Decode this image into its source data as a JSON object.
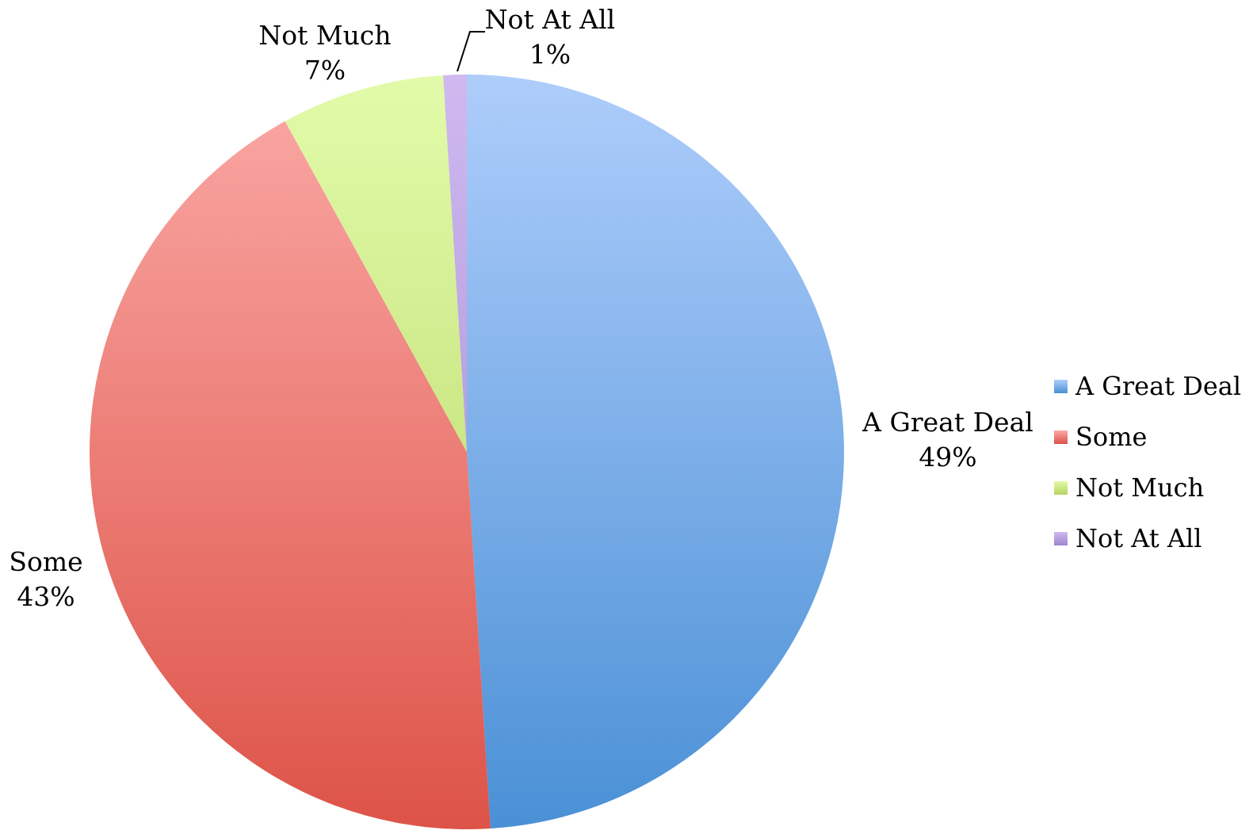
{
  "chart_data": {
    "type": "pie",
    "categories": [
      "A Great Deal",
      "Some",
      "Not Much",
      "Not At All"
    ],
    "values": [
      49,
      43,
      7,
      1
    ],
    "labels": [
      {
        "name": "A Great Deal",
        "pct": "49%"
      },
      {
        "name": "Some",
        "pct": "43%"
      },
      {
        "name": "Not Much",
        "pct": "7%"
      },
      {
        "name": "Not At All",
        "pct": "1%"
      }
    ],
    "colors": [
      {
        "light": "#aecdfb",
        "dark": "#4a90d6"
      },
      {
        "light": "#fba9a6",
        "dark": "#dd5348"
      },
      {
        "light": "#e2fbaa",
        "dark": "#b4d360"
      },
      {
        "light": "#cfb9ef",
        "dark": "#9f84cf"
      }
    ],
    "legend": {
      "position": "right",
      "items": [
        "A Great Deal",
        "Some",
        "Not Much",
        "Not At All"
      ],
      "colors": [
        "#4a90d6",
        "#dd5348",
        "#b4d360",
        "#9f84cf"
      ]
    }
  }
}
